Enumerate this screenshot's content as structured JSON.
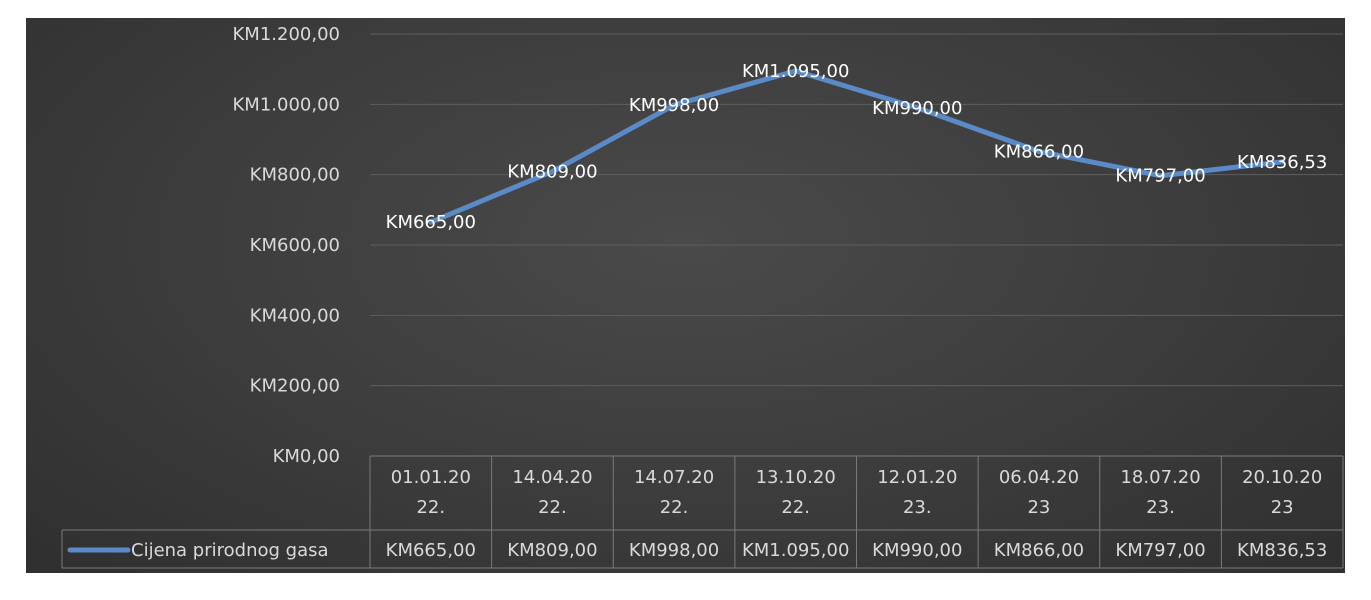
{
  "chart_data": {
    "type": "line",
    "categories": [
      "01.01.2022.",
      "14.04.2022.",
      "14.07.2022.",
      "13.10.2022.",
      "12.01.2023.",
      "06.04.2023",
      "18.07.2023.",
      "20.10.2023"
    ],
    "category_lines": [
      [
        "01.01.20",
        "22."
      ],
      [
        "14.04.20",
        "22."
      ],
      [
        "14.07.20",
        "22."
      ],
      [
        "13.10.20",
        "22."
      ],
      [
        "12.01.20",
        "23."
      ],
      [
        "06.04.20",
        "23"
      ],
      [
        "18.07.20",
        "23."
      ],
      [
        "20.10.20",
        "23"
      ]
    ],
    "series": [
      {
        "name": "Cijena prirodnog gasa",
        "values": [
          665.0,
          809.0,
          998.0,
          1095.0,
          990.0,
          866.0,
          797.0,
          836.53
        ],
        "labels": [
          "KM665,00",
          "KM809,00",
          "KM998,00",
          "KM1.095,00",
          "KM990,00",
          "KM866,00",
          "KM797,00",
          "KM836,53"
        ],
        "color": "#5b8ac9"
      }
    ],
    "y_ticks": [
      0,
      200,
      400,
      600,
      800,
      1000,
      1200
    ],
    "y_tick_labels": [
      "KM0,00",
      "KM200,00",
      "KM400,00",
      "KM600,00",
      "KM800,00",
      "KM1.000,00",
      "KM1.200,00"
    ],
    "ylim": [
      0,
      1200
    ],
    "grid": true,
    "data_table": true,
    "title": "",
    "xlabel": "",
    "ylabel": ""
  }
}
